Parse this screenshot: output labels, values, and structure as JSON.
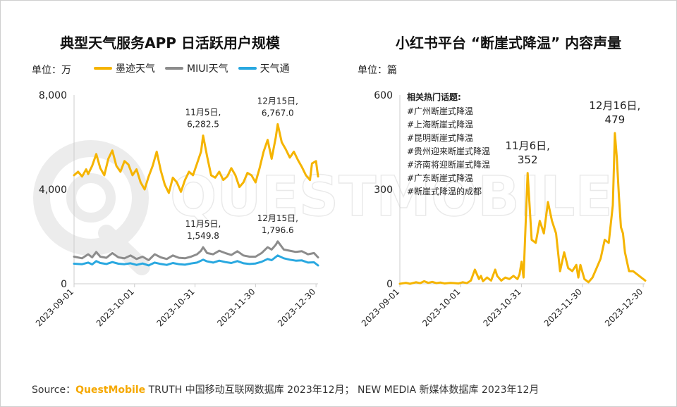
{
  "colors": {
    "moji": "#f5b400",
    "miui": "#8c8c8c",
    "tianqitong": "#29a8e0",
    "axis": "#cccccc",
    "text": "#222222",
    "brand": "#f5a800"
  },
  "watermark": "QUESTMOBILE",
  "left": {
    "title": "典型天气服务APP 日活跃用户规模",
    "unit": "单位：万",
    "legend": [
      "墨迹天气",
      "MIUI天气",
      "天气通"
    ]
  },
  "right": {
    "title": "小红书平台 “断崖式降温” 内容声量",
    "unit": "单位：篇",
    "topics_title": "相关热门话题:",
    "topics": [
      "#广州断崖式降温",
      "#上海断崖式降温",
      "#昆明断崖式降温",
      "#贵州迎来断崖式降温",
      "#济南将迎断崖式降温",
      "#广东断崖式降温",
      "#断崖式降温的成都"
    ]
  },
  "source": {
    "prefix": "Source：",
    "brand": "QuestMobile",
    "text": " TRUTH 中国移动互联网数据库 2023年12月； NEW MEDIA 新媒体数据库 2023年12月"
  },
  "chart_data": [
    {
      "type": "line",
      "title": "典型天气服务APP 日活跃用户规模",
      "ylabel": "单位：万",
      "ylim": [
        0,
        8000
      ],
      "yticks": [
        0,
        4000,
        8000
      ],
      "ytick_labels": [
        "0",
        "4,000",
        "8,000"
      ],
      "x_start": "2023-09-01",
      "x_days": 122,
      "xticks": [
        "2023-09-01",
        "2023-10-01",
        "2023-10-31",
        "2023-11-30",
        "2023-12-30"
      ],
      "xtick_days": [
        0,
        30,
        60,
        90,
        120
      ],
      "series": [
        {
          "name": "墨迹天气",
          "points": [
            [
              0,
              4600
            ],
            [
              2,
              4750
            ],
            [
              4,
              4550
            ],
            [
              6,
              4850
            ],
            [
              7,
              4650
            ],
            [
              9,
              5000
            ],
            [
              11,
              5500
            ],
            [
              13,
              4900
            ],
            [
              15,
              4600
            ],
            [
              17,
              5300
            ],
            [
              19,
              5650
            ],
            [
              21,
              5000
            ],
            [
              23,
              4750
            ],
            [
              25,
              5200
            ],
            [
              27,
              5050
            ],
            [
              29,
              4600
            ],
            [
              31,
              4850
            ],
            [
              33,
              4300
            ],
            [
              35,
              4000
            ],
            [
              37,
              4550
            ],
            [
              39,
              5000
            ],
            [
              41,
              5600
            ],
            [
              43,
              4800
            ],
            [
              45,
              4200
            ],
            [
              47,
              3850
            ],
            [
              49,
              4500
            ],
            [
              51,
              4300
            ],
            [
              53,
              3900
            ],
            [
              55,
              4400
            ],
            [
              57,
              4750
            ],
            [
              59,
              4600
            ],
            [
              61,
              5100
            ],
            [
              63,
              5600
            ],
            [
              64,
              6282.5
            ],
            [
              66,
              5400
            ],
            [
              68,
              4600
            ],
            [
              70,
              4500
            ],
            [
              72,
              4750
            ],
            [
              74,
              4400
            ],
            [
              76,
              4550
            ],
            [
              78,
              4900
            ],
            [
              80,
              4600
            ],
            [
              82,
              4100
            ],
            [
              84,
              4300
            ],
            [
              86,
              4700
            ],
            [
              88,
              4600
            ],
            [
              90,
              4300
            ],
            [
              92,
              4900
            ],
            [
              94,
              5600
            ],
            [
              96,
              6100
            ],
            [
              98,
              5300
            ],
            [
              100,
              6200
            ],
            [
              101,
              6767
            ],
            [
              103,
              6000
            ],
            [
              105,
              5700
            ],
            [
              107,
              5350
            ],
            [
              109,
              5600
            ],
            [
              111,
              5250
            ],
            [
              113,
              4950
            ],
            [
              115,
              4600
            ],
            [
              117,
              4400
            ],
            [
              118,
              5100
            ],
            [
              120,
              5200
            ],
            [
              121,
              4550
            ]
          ],
          "annotations": [
            {
              "x": 64,
              "y": 6282.5,
              "text": [
                "11月5日,",
                "6,282.5"
              ]
            },
            {
              "x": 101,
              "y": 6767,
              "text": [
                "12月15日,",
                "6,767.0"
              ]
            }
          ]
        },
        {
          "name": "MIUI天气",
          "points": [
            [
              0,
              1150
            ],
            [
              4,
              1080
            ],
            [
              7,
              1250
            ],
            [
              9,
              1120
            ],
            [
              11,
              1350
            ],
            [
              13,
              1150
            ],
            [
              16,
              1100
            ],
            [
              19,
              1300
            ],
            [
              22,
              1120
            ],
            [
              25,
              1080
            ],
            [
              28,
              1200
            ],
            [
              31,
              1050
            ],
            [
              34,
              1150
            ],
            [
              37,
              1000
            ],
            [
              40,
              1250
            ],
            [
              43,
              1120
            ],
            [
              46,
              1050
            ],
            [
              49,
              1200
            ],
            [
              52,
              1100
            ],
            [
              55,
              1080
            ],
            [
              58,
              1150
            ],
            [
              61,
              1250
            ],
            [
              63,
              1400
            ],
            [
              64,
              1549.8
            ],
            [
              66,
              1300
            ],
            [
              69,
              1250
            ],
            [
              72,
              1400
            ],
            [
              75,
              1300
            ],
            [
              78,
              1220
            ],
            [
              81,
              1380
            ],
            [
              84,
              1200
            ],
            [
              87,
              1150
            ],
            [
              90,
              1150
            ],
            [
              93,
              1300
            ],
            [
              96,
              1550
            ],
            [
              98,
              1450
            ],
            [
              100,
              1650
            ],
            [
              101,
              1796.6
            ],
            [
              104,
              1450
            ],
            [
              107,
              1400
            ],
            [
              110,
              1350
            ],
            [
              113,
              1380
            ],
            [
              116,
              1250
            ],
            [
              119,
              1300
            ],
            [
              121,
              1120
            ]
          ],
          "annotations": [
            {
              "x": 64,
              "y": 1549.8,
              "text": [
                "11月5日,",
                "1,549.8"
              ]
            },
            {
              "x": 101,
              "y": 1796.6,
              "text": [
                "12月15日,",
                "1,796.6"
              ]
            }
          ]
        },
        {
          "name": "天气通",
          "points": [
            [
              0,
              850
            ],
            [
              4,
              830
            ],
            [
              7,
              900
            ],
            [
              9,
              820
            ],
            [
              11,
              960
            ],
            [
              13,
              880
            ],
            [
              16,
              840
            ],
            [
              19,
              920
            ],
            [
              22,
              850
            ],
            [
              25,
              830
            ],
            [
              28,
              870
            ],
            [
              31,
              800
            ],
            [
              34,
              860
            ],
            [
              37,
              780
            ],
            [
              40,
              900
            ],
            [
              43,
              840
            ],
            [
              46,
              800
            ],
            [
              49,
              880
            ],
            [
              52,
              830
            ],
            [
              55,
              810
            ],
            [
              58,
              860
            ],
            [
              61,
              900
            ],
            [
              64,
              1020
            ],
            [
              66,
              950
            ],
            [
              69,
              900
            ],
            [
              72,
              980
            ],
            [
              75,
              920
            ],
            [
              78,
              880
            ],
            [
              81,
              960
            ],
            [
              84,
              870
            ],
            [
              87,
              840
            ],
            [
              90,
              860
            ],
            [
              93,
              930
            ],
            [
              96,
              1050
            ],
            [
              98,
              1000
            ],
            [
              101,
              1200
            ],
            [
              104,
              1080
            ],
            [
              107,
              1020
            ],
            [
              110,
              980
            ],
            [
              113,
              990
            ],
            [
              116,
              900
            ],
            [
              119,
              910
            ],
            [
              121,
              780
            ]
          ]
        }
      ]
    },
    {
      "type": "line",
      "title": "小红书平台 “断崖式降温” 内容声量",
      "ylabel": "单位：篇",
      "ylim": [
        0,
        600
      ],
      "yticks": [
        0,
        300,
        600
      ],
      "ytick_labels": [
        "0",
        "300",
        "600"
      ],
      "x_start": "2023-09-01",
      "x_days": 122,
      "xticks": [
        "2023-09-01",
        "2023-10-01",
        "2023-10-31",
        "2023-11-30",
        "2023-12-30"
      ],
      "xtick_days": [
        0,
        30,
        60,
        90,
        120
      ],
      "series": [
        {
          "name": "断崖式降温",
          "points": [
            [
              0,
              0
            ],
            [
              3,
              3
            ],
            [
              5,
              0
            ],
            [
              8,
              5
            ],
            [
              10,
              2
            ],
            [
              12,
              8
            ],
            [
              14,
              3
            ],
            [
              16,
              6
            ],
            [
              18,
              2
            ],
            [
              20,
              4
            ],
            [
              22,
              1
            ],
            [
              25,
              3
            ],
            [
              27,
              2
            ],
            [
              29,
              1
            ],
            [
              31,
              5
            ],
            [
              33,
              2
            ],
            [
              35,
              10
            ],
            [
              37,
              45
            ],
            [
              38,
              30
            ],
            [
              39,
              15
            ],
            [
              40,
              25
            ],
            [
              41,
              8
            ],
            [
              43,
              20
            ],
            [
              45,
              10
            ],
            [
              47,
              45
            ],
            [
              48,
              25
            ],
            [
              50,
              10
            ],
            [
              52,
              20
            ],
            [
              54,
              15
            ],
            [
              56,
              25
            ],
            [
              58,
              15
            ],
            [
              59,
              30
            ],
            [
              60,
              70
            ],
            [
              61,
              20
            ],
            [
              63,
              352
            ],
            [
              65,
              140
            ],
            [
              67,
              130
            ],
            [
              69,
              200
            ],
            [
              71,
              160
            ],
            [
              73,
              260
            ],
            [
              75,
              200
            ],
            [
              77,
              160
            ],
            [
              79,
              40
            ],
            [
              81,
              100
            ],
            [
              83,
              50
            ],
            [
              85,
              40
            ],
            [
              87,
              60
            ],
            [
              88,
              20
            ],
            [
              89,
              60
            ],
            [
              91,
              15
            ],
            [
              93,
              5
            ],
            [
              95,
              20
            ],
            [
              97,
              50
            ],
            [
              99,
              80
            ],
            [
              101,
              140
            ],
            [
              103,
              130
            ],
            [
              105,
              250
            ],
            [
              106,
              479
            ],
            [
              107,
              400
            ],
            [
              108,
              280
            ],
            [
              109,
              180
            ],
            [
              110,
              160
            ],
            [
              111,
              100
            ],
            [
              113,
              40
            ],
            [
              115,
              40
            ],
            [
              117,
              30
            ],
            [
              119,
              20
            ],
            [
              121,
              10
            ]
          ],
          "annotations": [
            {
              "x": 63,
              "y": 352,
              "text": [
                "11月6日,",
                "352"
              ]
            },
            {
              "x": 106,
              "y": 479,
              "text": [
                "12月16日,",
                "479"
              ]
            }
          ]
        }
      ]
    }
  ]
}
